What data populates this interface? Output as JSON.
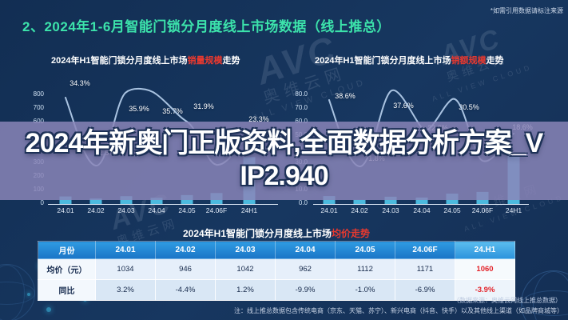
{
  "colors": {
    "background": "#16345c",
    "title_accent": "#3ce3ab",
    "highlight_red": "#e8392f",
    "bar": "#4cbade",
    "trend_line": "#b9d3ef",
    "overlay_band": "#8a85b9",
    "table_header_blue": "#1d7fd0",
    "table_value_red": "#e3242b"
  },
  "header": {
    "title": "2、2024年1-6月智能门锁分月度线上市场数据（线上推总）",
    "cite_note": "*如需引用数据请标注来源"
  },
  "overlay": {
    "line1": "2024年新奥门正版资料,全面数据分析方案_V",
    "line2": "IP2.940"
  },
  "watermark": {
    "abbr": "AVC",
    "cn": "奥维云网",
    "en": "ALL VIEW CLOUD"
  },
  "charts": {
    "left": {
      "title_prefix": "2024年H1智能门锁分月度线上市场",
      "title_highlight": "销量规模",
      "title_suffix": "走势",
      "y_ticks": [
        "800",
        "700",
        "600",
        "500",
        "400",
        "300",
        "200",
        "100",
        "0"
      ],
      "x_labels": [
        "24.01",
        "24.02",
        "24.03",
        "24.04",
        "24.05",
        "24.06F",
        "24H1"
      ],
      "pct_labels": [
        "34.3%",
        "2.8%",
        "35.9%",
        "35.7%",
        "31.9%",
        "23.3%"
      ]
    },
    "right": {
      "title_prefix": "2024年H1智能门锁分月度线上市场",
      "title_highlight": "销额规模",
      "title_suffix": "走势",
      "y_ticks": [
        "80.0",
        "70.0",
        "60.0",
        "50.0",
        "40.0",
        "30.0",
        "20.0",
        "10.0",
        "0.0"
      ],
      "x_labels": [
        "24.01",
        "24.02",
        "24.03",
        "24.04",
        "24.05",
        "24.06F",
        "24H1"
      ],
      "pct_labels": [
        "38.6%",
        "-1.8%",
        "37.6%",
        "22.3%",
        "30.5%",
        "0%",
        "18.6%"
      ]
    }
  },
  "table": {
    "title_prefix": "2024年H1智能门锁分月度线上市场",
    "title_highlight": "均价走势",
    "columns": [
      "月份",
      "24.01",
      "24.02",
      "24.03",
      "24.04",
      "24.05",
      "24.06F",
      "24.H1"
    ],
    "rows": [
      {
        "label": "均价（元）",
        "values": [
          "1034",
          "946",
          "1042",
          "962",
          "1112",
          "1171",
          "1060"
        ]
      },
      {
        "label": "同比",
        "values": [
          "3.2%",
          "-4.4%",
          "1.2%",
          "-9.9%",
          "-1.0%",
          "-6.9%",
          "-3.9%"
        ]
      }
    ]
  },
  "footer": {
    "source": "（数据来源：奥维云网线上推总数据）",
    "note": "注：线上推总数据包含传统电商（京东、天猫、苏宁）、新兴电商（抖音、快手）以及其他线上渠道（如品牌商城等）"
  },
  "chart_data": [
    {
      "type": "bar",
      "title": "2024年H1智能门锁分月度线上市场销量规模走势",
      "categories": [
        "24.01",
        "24.02",
        "24.03",
        "24.04",
        "24.05",
        "24.06F",
        "24H1"
      ],
      "series": [
        {
          "name": "销量规模",
          "type": "bar",
          "values": [
            55,
            40,
            57,
            45,
            65,
            80,
            342
          ]
        },
        {
          "name": "同比",
          "type": "line",
          "unit": "%",
          "values": [
            34.3,
            2.8,
            35.9,
            35.7,
            31.9,
            null,
            23.3
          ]
        }
      ],
      "xlabel": "",
      "ylabel": "",
      "ylim": [
        0,
        800
      ],
      "y_tick_step": 100,
      "grid": false,
      "legend": "none",
      "note": "bar values estimated from bar heights; 24.06F line label hidden by overlay"
    },
    {
      "type": "bar",
      "title": "2024年H1智能门锁分月度线上市场销额规模走势",
      "categories": [
        "24.01",
        "24.02",
        "24.03",
        "24.04",
        "24.05",
        "24.06F",
        "24H1"
      ],
      "series": [
        {
          "name": "销额规模",
          "type": "bar",
          "values": [
            5.8,
            3.0,
            5.3,
            4.7,
            7.6,
            8.8,
            35.2
          ]
        },
        {
          "name": "同比",
          "type": "line",
          "unit": "%",
          "values": [
            38.6,
            -1.8,
            37.6,
            22.3,
            30.5,
            null,
            18.6
          ]
        }
      ],
      "xlabel": "",
      "ylabel": "",
      "ylim": [
        0,
        80
      ],
      "y_tick_step": 10,
      "grid": false,
      "legend": "none",
      "note": "bar values estimated from bar heights; 24.06F line label partially hidden (only '0%' visible)"
    },
    {
      "type": "table",
      "title": "2024年H1智能门锁分月度线上市场均价走势",
      "columns": [
        "月份",
        "24.01",
        "24.02",
        "24.03",
        "24.04",
        "24.05",
        "24.06F",
        "24.H1"
      ],
      "rows": [
        [
          "均价（元）",
          "1034",
          "946",
          "1042",
          "962",
          "1112",
          "1171",
          "1060"
        ],
        [
          "同比",
          "3.2%",
          "-4.4%",
          "1.2%",
          "-9.9%",
          "-1.0%",
          "-6.9%",
          "-3.9%"
        ]
      ]
    }
  ]
}
